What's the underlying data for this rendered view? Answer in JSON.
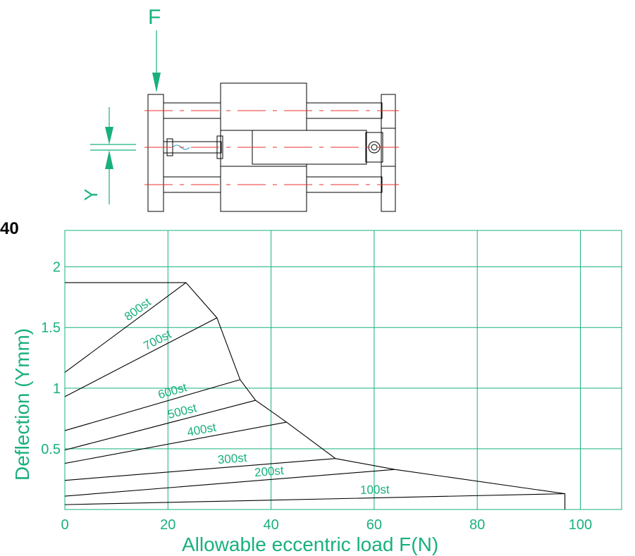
{
  "model_label": "40",
  "diagram": {
    "force_label": "F",
    "deflection_label": "Y"
  },
  "chart_data": {
    "type": "line",
    "xlabel": "Allowable eccentric load F(N)",
    "ylabel": "Deflection (Ymm)",
    "xlim": [
      0,
      108
    ],
    "ylim": [
      0,
      2.3
    ],
    "x_ticks": [
      0,
      20,
      40,
      60,
      80,
      100
    ],
    "x_tick_labels": [
      "0",
      "20",
      "40",
      "60",
      "80",
      "100"
    ],
    "y_ticks": [
      0.5,
      1,
      1.5,
      2
    ],
    "y_tick_labels": [
      "0.5",
      "1",
      "1.5",
      "2"
    ],
    "grid": true,
    "series": [
      {
        "name": "100st",
        "x": [
          0,
          97
        ],
        "y": [
          0.04,
          0.13
        ]
      },
      {
        "name": "200st",
        "x": [
          0,
          64
        ],
        "y": [
          0.11,
          0.33
        ]
      },
      {
        "name": "300st",
        "x": [
          0,
          52.5
        ],
        "y": [
          0.24,
          0.42
        ]
      },
      {
        "name": "400st",
        "x": [
          0,
          43
        ],
        "y": [
          0.38,
          0.72
        ]
      },
      {
        "name": "500st",
        "x": [
          0,
          37
        ],
        "y": [
          0.49,
          0.9
        ]
      },
      {
        "name": "600st",
        "x": [
          0,
          34
        ],
        "y": [
          0.65,
          1.07
        ]
      },
      {
        "name": "700st",
        "x": [
          0,
          29.5
        ],
        "y": [
          0.93,
          1.58
        ]
      },
      {
        "name": "800st",
        "x": [
          0,
          23.5
        ],
        "y": [
          1.13,
          1.87
        ]
      }
    ],
    "envelope": {
      "x": [
        0,
        23.5,
        29.5,
        34,
        37,
        43,
        52.5,
        64,
        97,
        97
      ],
      "y": [
        1.87,
        1.87,
        1.58,
        1.07,
        0.9,
        0.72,
        0.42,
        0.33,
        0.13,
        0
      ]
    },
    "colors": {
      "grid": "#19b07f",
      "text": "#19b07f",
      "lines": "#000000"
    }
  }
}
